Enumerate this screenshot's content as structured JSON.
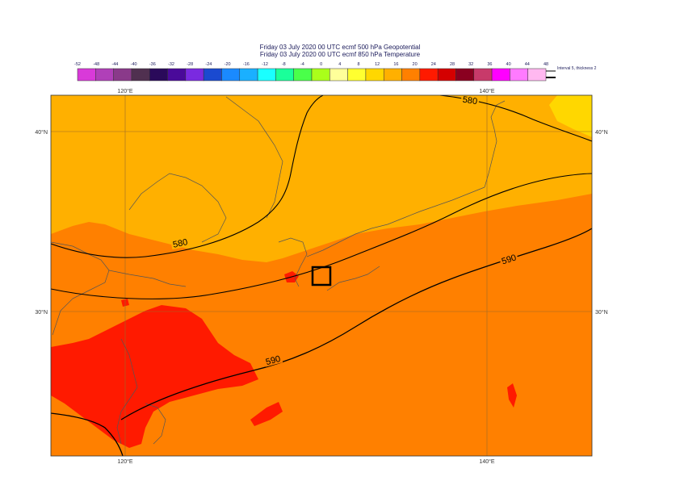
{
  "header": {
    "title_line1": "Friday 03 July 2020 00 UTC ecmf 500 hPa  Geopotential",
    "title_line2": "Friday 03 July 2020 00 UTC ecmf 850 hPa  Temperature"
  },
  "colorbar": {
    "tick_labels": [
      "-52",
      "-48",
      "-44",
      "-40",
      "-36",
      "-32",
      "-28",
      "-24",
      "-20",
      "-16",
      "-12",
      "-8",
      "-4",
      "0",
      "4",
      "8",
      "12",
      "16",
      "20",
      "24",
      "28",
      "32",
      "36",
      "40",
      "44",
      "48"
    ],
    "colors": [
      "#d93ad9",
      "#b040b8",
      "#8a3a8a",
      "#503050",
      "#2a0a5a",
      "#4a0a9a",
      "#7a2ae0",
      "#1a4ad0",
      "#1a8aff",
      "#1ab0ff",
      "#1affff",
      "#1aff9a",
      "#4aff4a",
      "#aaff1a",
      "#ffff9a",
      "#ffff30",
      "#ffd700",
      "#ffb000",
      "#ff8000",
      "#ff1a00",
      "#d40000",
      "#8a0020",
      "#c83a6a",
      "#ff00ff",
      "#ff7aff",
      "#ffb8f0"
    ],
    "legend_text": "Interval 5, thickness 2"
  },
  "map": {
    "lon_labels": [
      "120°E",
      "140°E"
    ],
    "lat_labels": [
      "40°N",
      "30°N"
    ],
    "contour_labels": [
      "580",
      "580",
      "590",
      "590"
    ],
    "colors": {
      "temp_12_16": "#ffb000",
      "temp_16_20": "#ff8000",
      "temp_20_24": "#ff1a00",
      "temp_8_12": "#ffd700",
      "coast": "#555555",
      "contour": "#000000"
    }
  }
}
